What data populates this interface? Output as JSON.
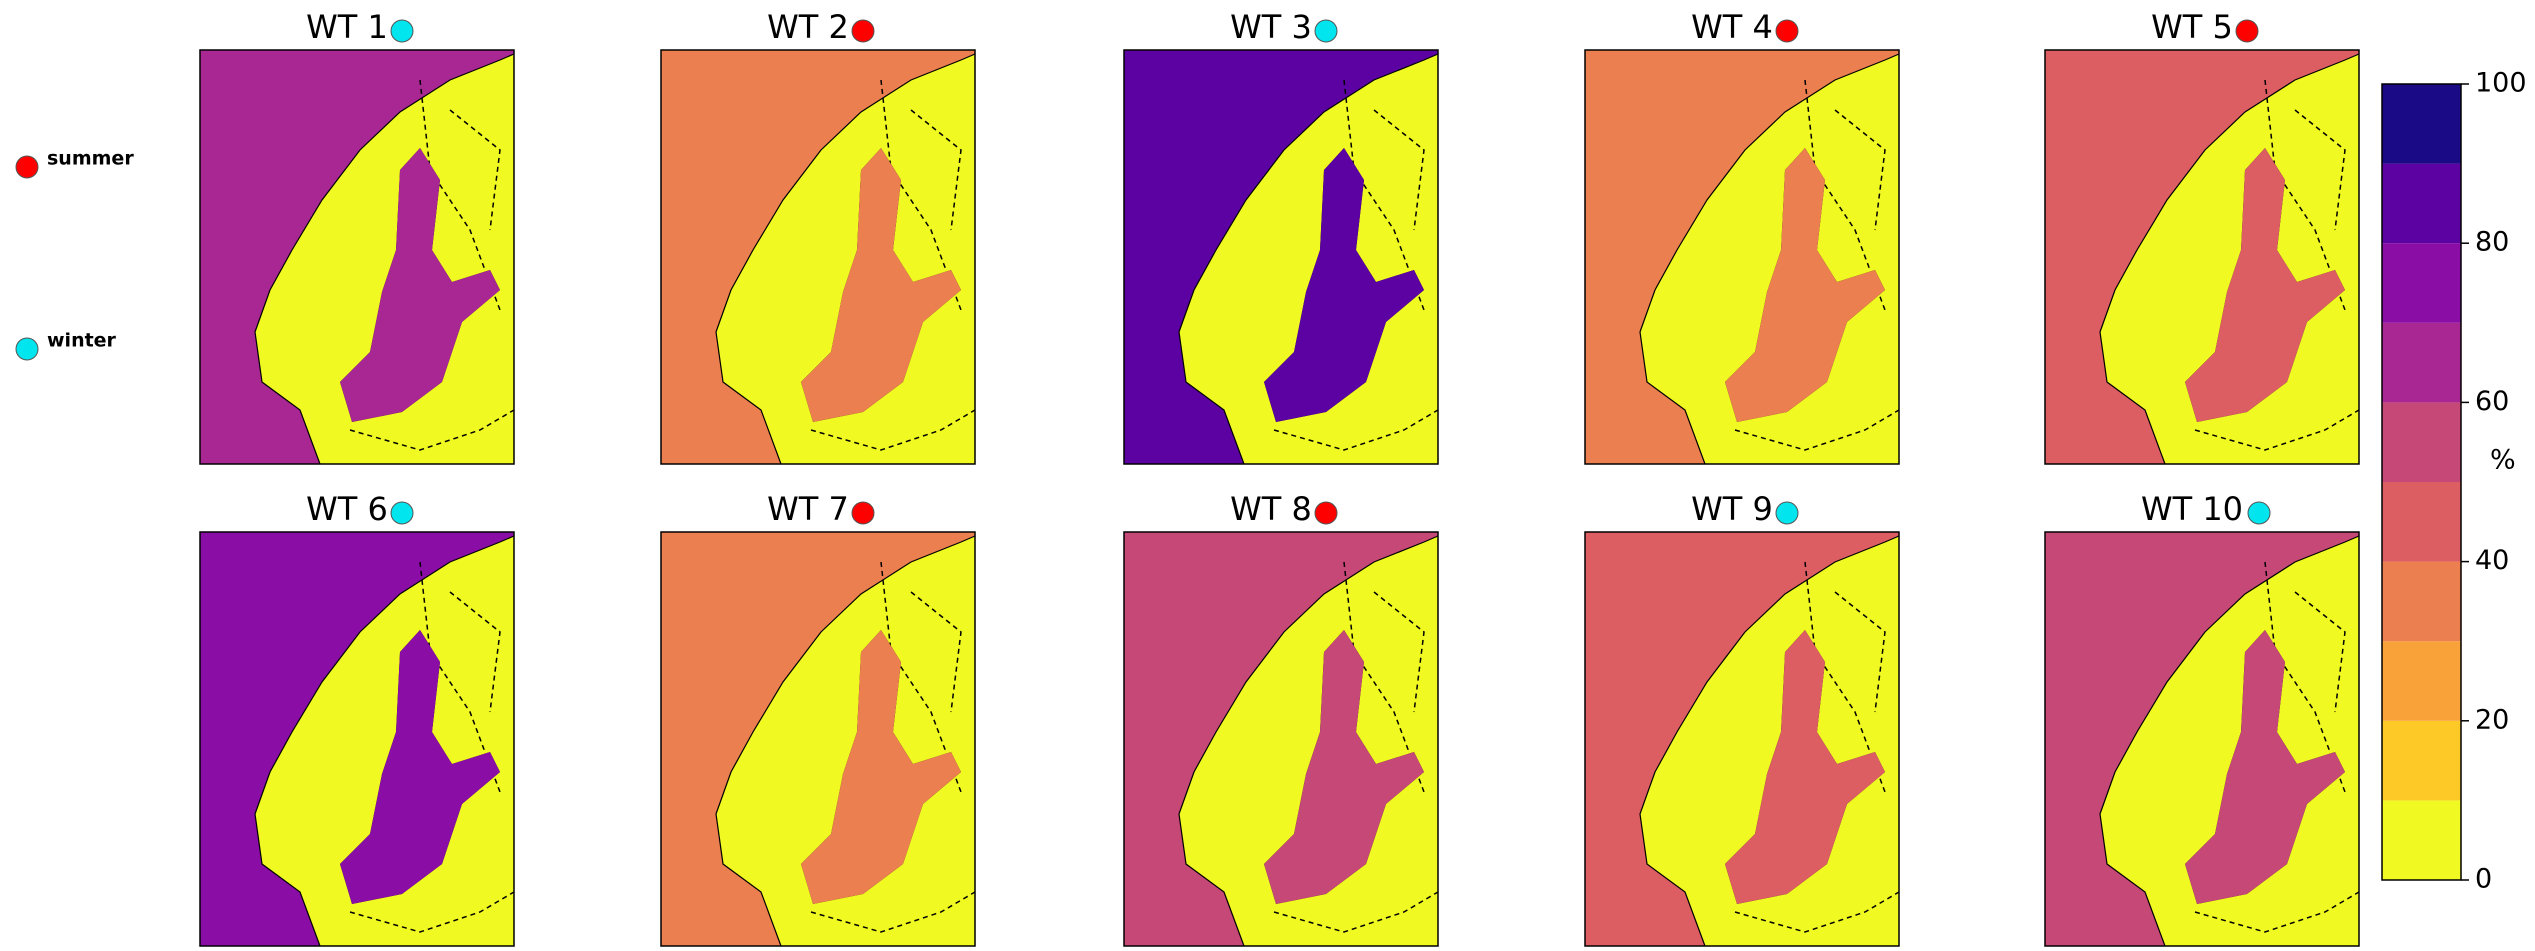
{
  "legend": [
    {
      "label": "summer",
      "color": "#ff0000"
    },
    {
      "label": "winter",
      "color": "#00e5ee"
    }
  ],
  "panels": [
    {
      "title": "WT 1",
      "season": "winter"
    },
    {
      "title": "WT 2",
      "season": "summer"
    },
    {
      "title": "WT 3",
      "season": "winter"
    },
    {
      "title": "WT 4",
      "season": "summer"
    },
    {
      "title": "WT 5",
      "season": "summer"
    },
    {
      "title": "WT 6",
      "season": "winter"
    },
    {
      "title": "WT 7",
      "season": "summer"
    },
    {
      "title": "WT 8",
      "season": "summer"
    },
    {
      "title": "WT 9",
      "season": "winter"
    },
    {
      "title": "WT 10",
      "season": "winter"
    }
  ],
  "colorbar": {
    "label": "%",
    "lim": [
      0,
      100
    ],
    "ticks": [
      0,
      20,
      40,
      60,
      80,
      100
    ],
    "levels": [
      0,
      10,
      20,
      30,
      40,
      50,
      60,
      70,
      80,
      90,
      100
    ],
    "colors": [
      "#f0f921",
      "#fdc926",
      "#f9a23a",
      "#ec7f4f",
      "#dc5e63",
      "#c54877",
      "#a82793",
      "#8a0da5",
      "#5c02a3",
      "#1a0a86"
    ]
  }
}
